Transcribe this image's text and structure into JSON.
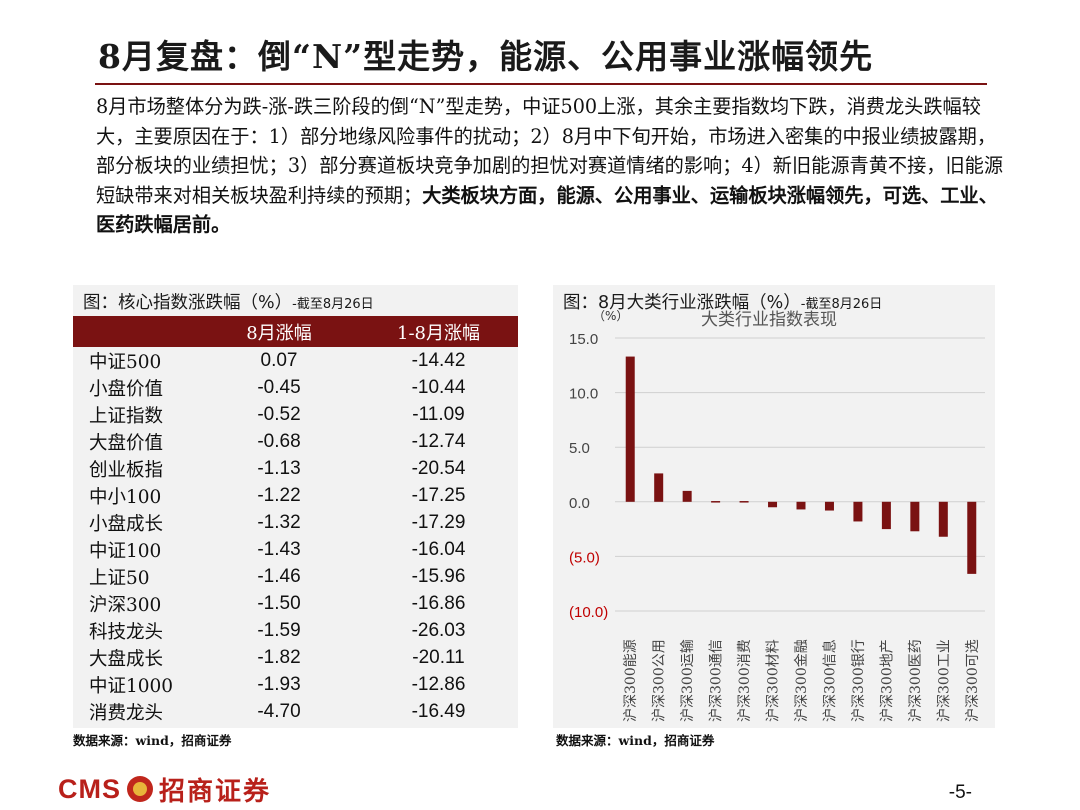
{
  "title": "8月复盘：倒“N”型走势，能源、公用事业涨幅领先",
  "paragraph": {
    "normal": "8月市场整体分为跌-涨-跌三阶段的倒“N”型走势，中证500上涨，其余主要指数均下跌，消费龙头跌幅较大，主要原因在于：1）部分地缘风险事件的扰动；2）8月中下旬开始，市场进入密集的中报业绩披露期，部分板块的业绩担忧；3）部分赛道板块竞争加剧的担忧对赛道情绪的影响；4）新旧能源青黄不接，旧能源短缺带来对相关板块盈利持续的预期；",
    "bold": "大类板块方面，能源、公用事业、运输板块涨幅领先，可选、工业、医药跌幅居前。"
  },
  "left_panel": {
    "caption": "图：核心指数涨跌幅（%）",
    "caption_sub": "-截至8月26日",
    "headers": [
      "",
      "8月涨幅",
      "1-8月涨幅"
    ],
    "rows": [
      {
        "name": "中证500",
        "aug": "0.07",
        "ytd": "-14.42"
      },
      {
        "name": "小盘价值",
        "aug": "-0.45",
        "ytd": "-10.44"
      },
      {
        "name": "上证指数",
        "aug": "-0.52",
        "ytd": "-11.09"
      },
      {
        "name": "大盘价值",
        "aug": "-0.68",
        "ytd": "-12.74"
      },
      {
        "name": "创业板指",
        "aug": "-1.13",
        "ytd": "-20.54"
      },
      {
        "name": "中小100",
        "aug": "-1.22",
        "ytd": "-17.25"
      },
      {
        "name": "小盘成长",
        "aug": "-1.32",
        "ytd": "-17.29"
      },
      {
        "name": "中证100",
        "aug": "-1.43",
        "ytd": "-16.04"
      },
      {
        "name": "上证50",
        "aug": "-1.46",
        "ytd": "-15.96"
      },
      {
        "name": "沪深300",
        "aug": "-1.50",
        "ytd": "-16.86"
      },
      {
        "name": "科技龙头",
        "aug": "-1.59",
        "ytd": "-26.03"
      },
      {
        "name": "大盘成长",
        "aug": "-1.82",
        "ytd": "-20.11"
      },
      {
        "name": "中证1000",
        "aug": "-1.93",
        "ytd": "-12.86"
      },
      {
        "name": "消费龙头",
        "aug": "-4.70",
        "ytd": "-16.49"
      }
    ],
    "source": "数据来源：wind，招商证券"
  },
  "right_panel": {
    "caption": "图：8月大类行业涨跌幅（%）",
    "caption_sub": "-截至8月26日",
    "source": "数据来源：wind，招商证券"
  },
  "chart_data": {
    "type": "bar",
    "title": "大类行业指数表现",
    "ylabel": "（%）",
    "categories": [
      "沪深300能源",
      "沪深300公用",
      "沪深300运输",
      "沪深300通信",
      "沪深300消费",
      "沪深300材料",
      "沪深300金融",
      "沪深300信息",
      "沪深300银行",
      "沪深300地产",
      "沪深300医药",
      "沪深300工业",
      "沪深300可选"
    ],
    "values": [
      13.3,
      2.6,
      1.0,
      0.1,
      -0.1,
      -0.5,
      -0.7,
      -0.8,
      -1.8,
      -2.5,
      -2.7,
      -3.2,
      -6.6
    ],
    "ylim": [
      -10,
      15
    ],
    "yticks": [
      15,
      10,
      5,
      0,
      -5,
      -10
    ],
    "ytick_labels": [
      "15.0",
      "10.0",
      "5.0",
      "0.0",
      "(5.0)",
      "(10.0)"
    ],
    "grid": true,
    "bar_color": "#7a1212",
    "negative_label_color": "#c00000"
  },
  "footer": {
    "logo_en": "CMS",
    "logo_cn": "招商证券",
    "page": "-5-"
  }
}
